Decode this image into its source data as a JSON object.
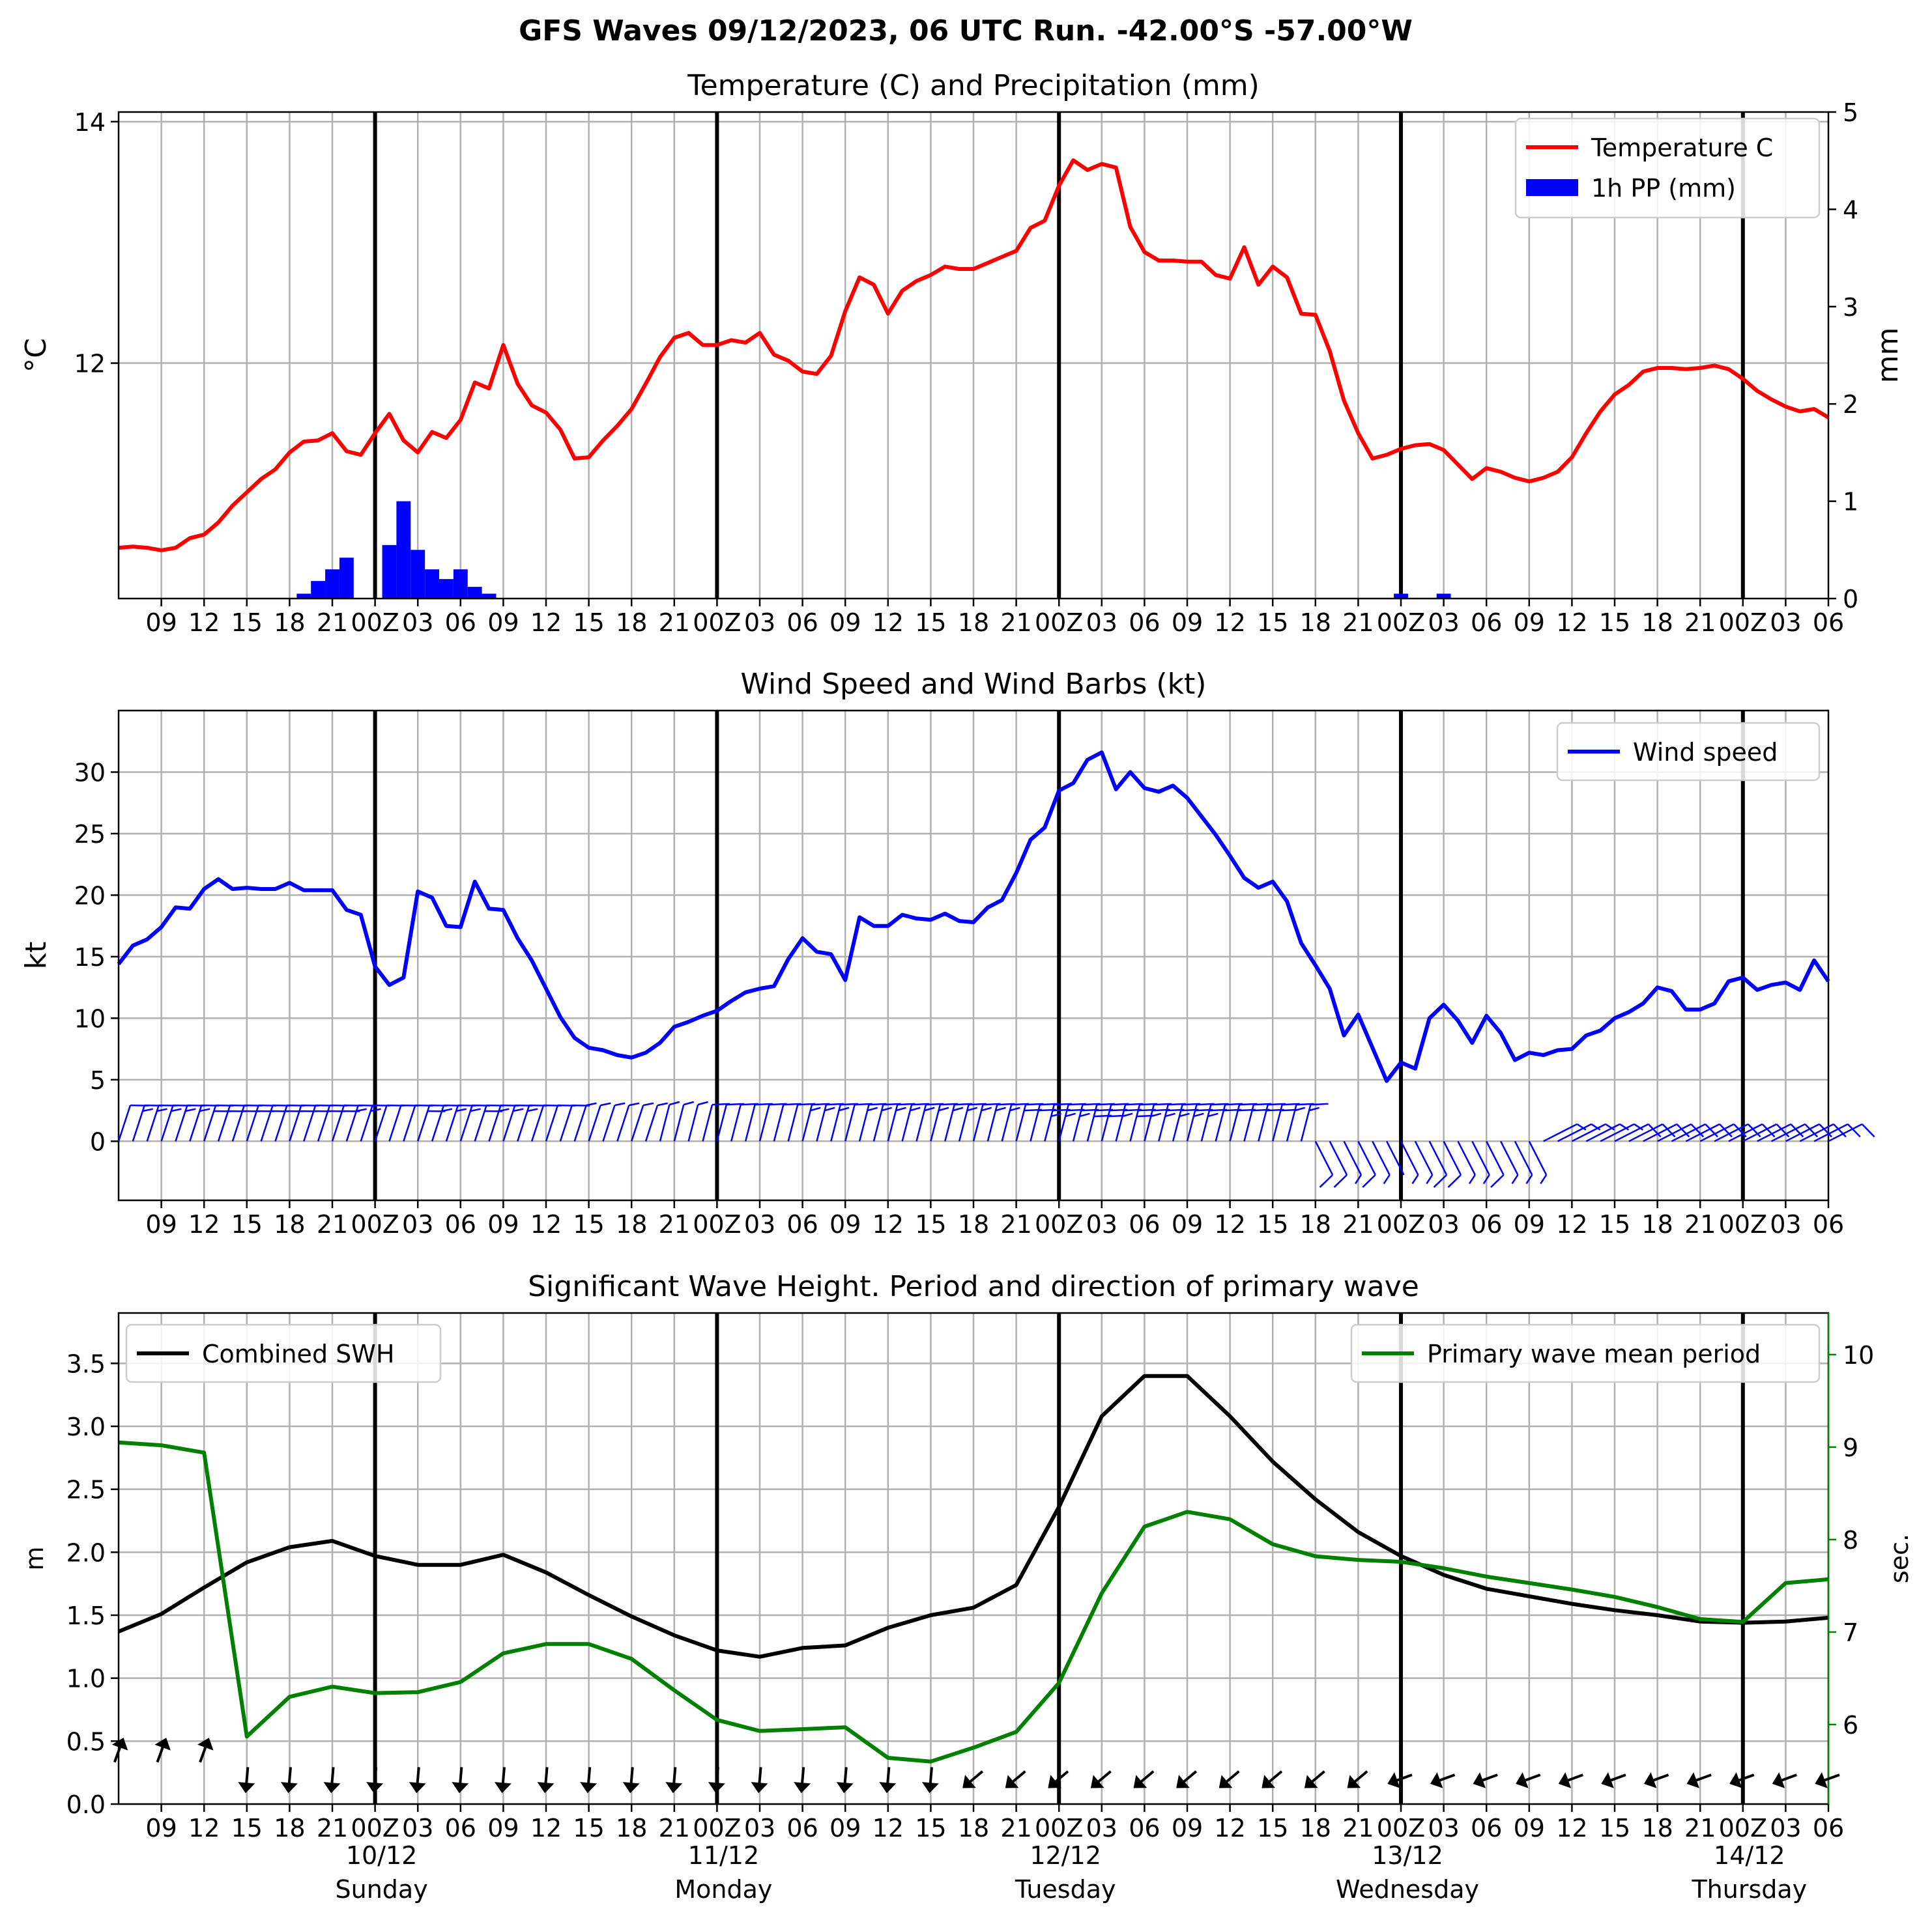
{
  "suptitle": "GFS Waves 09/12/2023, 06 UTC Run. -42.00°S -57.00°W",
  "colors": {
    "temperature": "#ff0000",
    "precip": "#0000ff",
    "wind": "#0000ff",
    "swh": "#000000",
    "period": "#008000",
    "grid": "#b0b0b0"
  },
  "axis": {
    "x_ticks": [
      "09",
      "12",
      "15",
      "18",
      "21",
      "00Z",
      "03",
      "06",
      "09",
      "12",
      "15",
      "18",
      "21",
      "00Z",
      "03",
      "06",
      "09",
      "12",
      "15",
      "18",
      "21",
      "00Z",
      "03",
      "06",
      "09",
      "12",
      "15",
      "18",
      "21",
      "00Z",
      "03",
      "06",
      "09",
      "12",
      "15",
      "18",
      "21",
      "00Z",
      "03",
      "06"
    ],
    "day_labels": [
      {
        "date": "10/12",
        "weekday": "Sunday",
        "hour": 18
      },
      {
        "date": "11/12",
        "weekday": "Monday",
        "hour": 42
      },
      {
        "date": "12/12",
        "weekday": "Tuesday",
        "hour": 66
      },
      {
        "date": "13/12",
        "weekday": "Wednesday",
        "hour": 90
      },
      {
        "date": "14/12",
        "weekday": "Thursday",
        "hour": 114
      }
    ]
  },
  "chart_data": [
    {
      "type": "line",
      "title": "Temperature (C) and Precipitation (mm)",
      "ylabel": "$^\\circ$C",
      "ylabel_right": "mm",
      "xlim": [
        0,
        120
      ],
      "ylim": [
        10.05,
        14.08
      ],
      "ylim_right": [
        0,
        5
      ],
      "yticks": [
        12,
        14
      ],
      "yticks_right": [
        0,
        1,
        2,
        3,
        4,
        5
      ],
      "legend": {
        "position": "top-right",
        "entries": [
          "Temperature C",
          "1h PP (mm)"
        ]
      },
      "series": [
        {
          "name": "Temperature C",
          "color": "#ff0000",
          "x_step": 1,
          "values": [
            10.47,
            10.48,
            10.47,
            10.45,
            10.47,
            10.55,
            10.58,
            10.68,
            10.82,
            10.93,
            11.04,
            11.12,
            11.26,
            11.35,
            11.36,
            11.42,
            11.27,
            11.24,
            11.42,
            11.58,
            11.36,
            11.26,
            11.43,
            11.38,
            11.53,
            11.84,
            11.79,
            12.15,
            11.83,
            11.65,
            11.59,
            11.45,
            11.21,
            11.22,
            11.36,
            11.48,
            11.62,
            11.83,
            12.05,
            12.21,
            12.25,
            12.15,
            12.15,
            12.19,
            12.17,
            12.25,
            12.07,
            12.02,
            11.93,
            11.91,
            12.06,
            12.43,
            12.71,
            12.65,
            12.41,
            12.6,
            12.68,
            12.73,
            12.8,
            12.78,
            12.78,
            12.83,
            12.88,
            12.93,
            13.12,
            13.18,
            13.47,
            13.68,
            13.6,
            13.65,
            13.62,
            13.13,
            12.92,
            12.85,
            12.85,
            12.84,
            12.84,
            12.73,
            12.7,
            12.96,
            12.65,
            12.8,
            12.71,
            12.41,
            12.4,
            12.1,
            11.69,
            11.42,
            11.21,
            11.24,
            11.29,
            11.32,
            11.33,
            11.28,
            11.16,
            11.04,
            11.13,
            11.1,
            11.05,
            11.02,
            11.05,
            11.1,
            11.22,
            11.42,
            11.6,
            11.74,
            11.82,
            11.93,
            11.96,
            11.96,
            11.95,
            11.96,
            11.98,
            11.95,
            11.87,
            11.77,
            11.7,
            11.64,
            11.6,
            11.62,
            11.55
          ]
        },
        {
          "name": "1h PP (mm)",
          "type": "bar",
          "color": "#0000ff",
          "x_start": 13,
          "x_step": 1,
          "values": [
            0.05,
            0.18,
            0.3,
            0.42,
            0,
            0,
            0.55,
            1,
            0.5,
            0.3,
            0.2,
            0.3,
            0.12,
            0.05,
            0,
            0,
            0,
            0,
            0,
            0,
            0,
            0,
            0,
            0,
            0,
            0,
            0,
            0,
            0,
            0,
            0,
            0,
            0,
            0,
            0,
            0,
            0,
            0,
            0,
            0,
            0,
            0,
            0,
            0,
            0,
            0,
            0,
            0,
            0,
            0,
            0,
            0,
            0,
            0,
            0,
            0,
            0,
            0,
            0,
            0,
            0,
            0,
            0,
            0,
            0,
            0,
            0,
            0,
            0,
            0,
            0,
            0,
            0,
            0,
            0,
            0,
            0,
            0.05,
            0,
            0,
            0.05
          ]
        }
      ]
    },
    {
      "type": "line",
      "title": "Wind Speed and Wind Barbs (kt)",
      "ylabel": "kt",
      "xlim": [
        0,
        120
      ],
      "ylim": [
        -4.8,
        35
      ],
      "yticks": [
        0,
        5,
        10,
        15,
        20,
        25,
        30
      ],
      "legend": {
        "position": "top-right",
        "entries": [
          "Wind speed"
        ]
      },
      "series": [
        {
          "name": "Wind speed",
          "color": "#0000ff",
          "x_step": 1,
          "values": [
            14.4,
            15.9,
            16.4,
            17.4,
            19.0,
            18.9,
            20.5,
            21.3,
            20.5,
            20.6,
            20.5,
            20.5,
            21.0,
            20.4,
            20.4,
            20.4,
            18.8,
            18.4,
            14.2,
            12.7,
            13.3,
            20.3,
            19.8,
            17.5,
            17.4,
            21.1,
            18.9,
            18.8,
            16.5,
            14.7,
            12.4,
            10.1,
            8.4,
            7.6,
            7.4,
            7.0,
            6.8,
            7.2,
            8.0,
            9.3,
            9.7,
            10.2,
            10.6,
            11.4,
            12.1,
            12.4,
            12.6,
            14.8,
            16.5,
            15.4,
            15.2,
            13.1,
            18.2,
            17.5,
            17.5,
            18.4,
            18.1,
            18.0,
            18.5,
            17.9,
            17.8,
            19.0,
            19.6,
            21.8,
            24.5,
            25.5,
            28.5,
            29.1,
            31.0,
            31.6,
            28.6,
            30.0,
            28.7,
            28.4,
            28.9,
            27.9,
            26.4,
            24.9,
            23.2,
            21.4,
            20.6,
            21.1,
            19.5,
            16.1,
            14.3,
            12.4,
            8.6,
            10.3,
            7.6,
            4.9,
            6.4,
            5.9,
            10.0,
            11.1,
            9.8,
            8.0,
            10.2,
            8.8,
            6.6,
            7.2,
            7.0,
            7.4,
            7.5,
            8.6,
            9.0,
            10.0,
            10.5,
            11.2,
            12.5,
            12.2,
            10.7,
            10.7,
            11.2,
            13.0,
            13.3,
            12.3,
            12.7,
            12.9,
            12.3,
            14.7,
            13.0
          ]
        }
      ]
    },
    {
      "type": "line",
      "title": "Significant Wave Height. Period and direction of primary wave",
      "ylabel": "m",
      "ylabel_right": "sec.",
      "xlim": [
        0,
        120
      ],
      "ylim": [
        0,
        3.9
      ],
      "ylim_right": [
        5.14,
        10.45
      ],
      "yticks": [
        0.0,
        0.5,
        1.0,
        1.5,
        2.0,
        2.5,
        3.0,
        3.5
      ],
      "yticks_right": [
        6,
        7,
        8,
        9,
        10
      ],
      "legend": [
        {
          "position": "top-left",
          "entries": [
            "Combined SWH"
          ]
        },
        {
          "position": "top-right",
          "entries": [
            "Primary wave mean period"
          ]
        }
      ],
      "series": [
        {
          "name": "Combined SWH",
          "color": "#000000",
          "x_step": 3,
          "values": [
            1.37,
            1.51,
            1.72,
            1.92,
            2.04,
            2.09,
            1.97,
            1.9,
            1.9,
            1.98,
            1.84,
            1.66,
            1.49,
            1.34,
            1.22,
            1.17,
            1.24,
            1.26,
            1.4,
            1.5,
            1.56,
            1.74,
            2.36,
            3.08,
            3.4,
            3.4,
            3.08,
            2.72,
            2.42,
            2.16,
            1.97,
            1.82,
            1.71,
            1.65,
            1.59,
            1.54,
            1.5,
            1.45,
            1.44,
            1.45,
            1.48
          ]
        },
        {
          "name": "Primary wave mean period",
          "color": "#008000",
          "x_step": 3,
          "values": [
            9.05,
            9.02,
            8.94,
            5.87,
            6.3,
            6.41,
            6.34,
            6.35,
            6.46,
            6.77,
            6.87,
            6.87,
            6.71,
            6.37,
            6.05,
            5.93,
            5.95,
            5.97,
            5.64,
            5.6,
            5.75,
            5.92,
            6.45,
            7.42,
            8.14,
            8.3,
            8.22,
            7.95,
            7.82,
            7.78,
            7.76,
            7.69,
            7.6,
            7.53,
            7.46,
            7.38,
            7.27,
            7.14,
            7.11,
            7.53,
            7.57
          ]
        }
      ]
    }
  ]
}
